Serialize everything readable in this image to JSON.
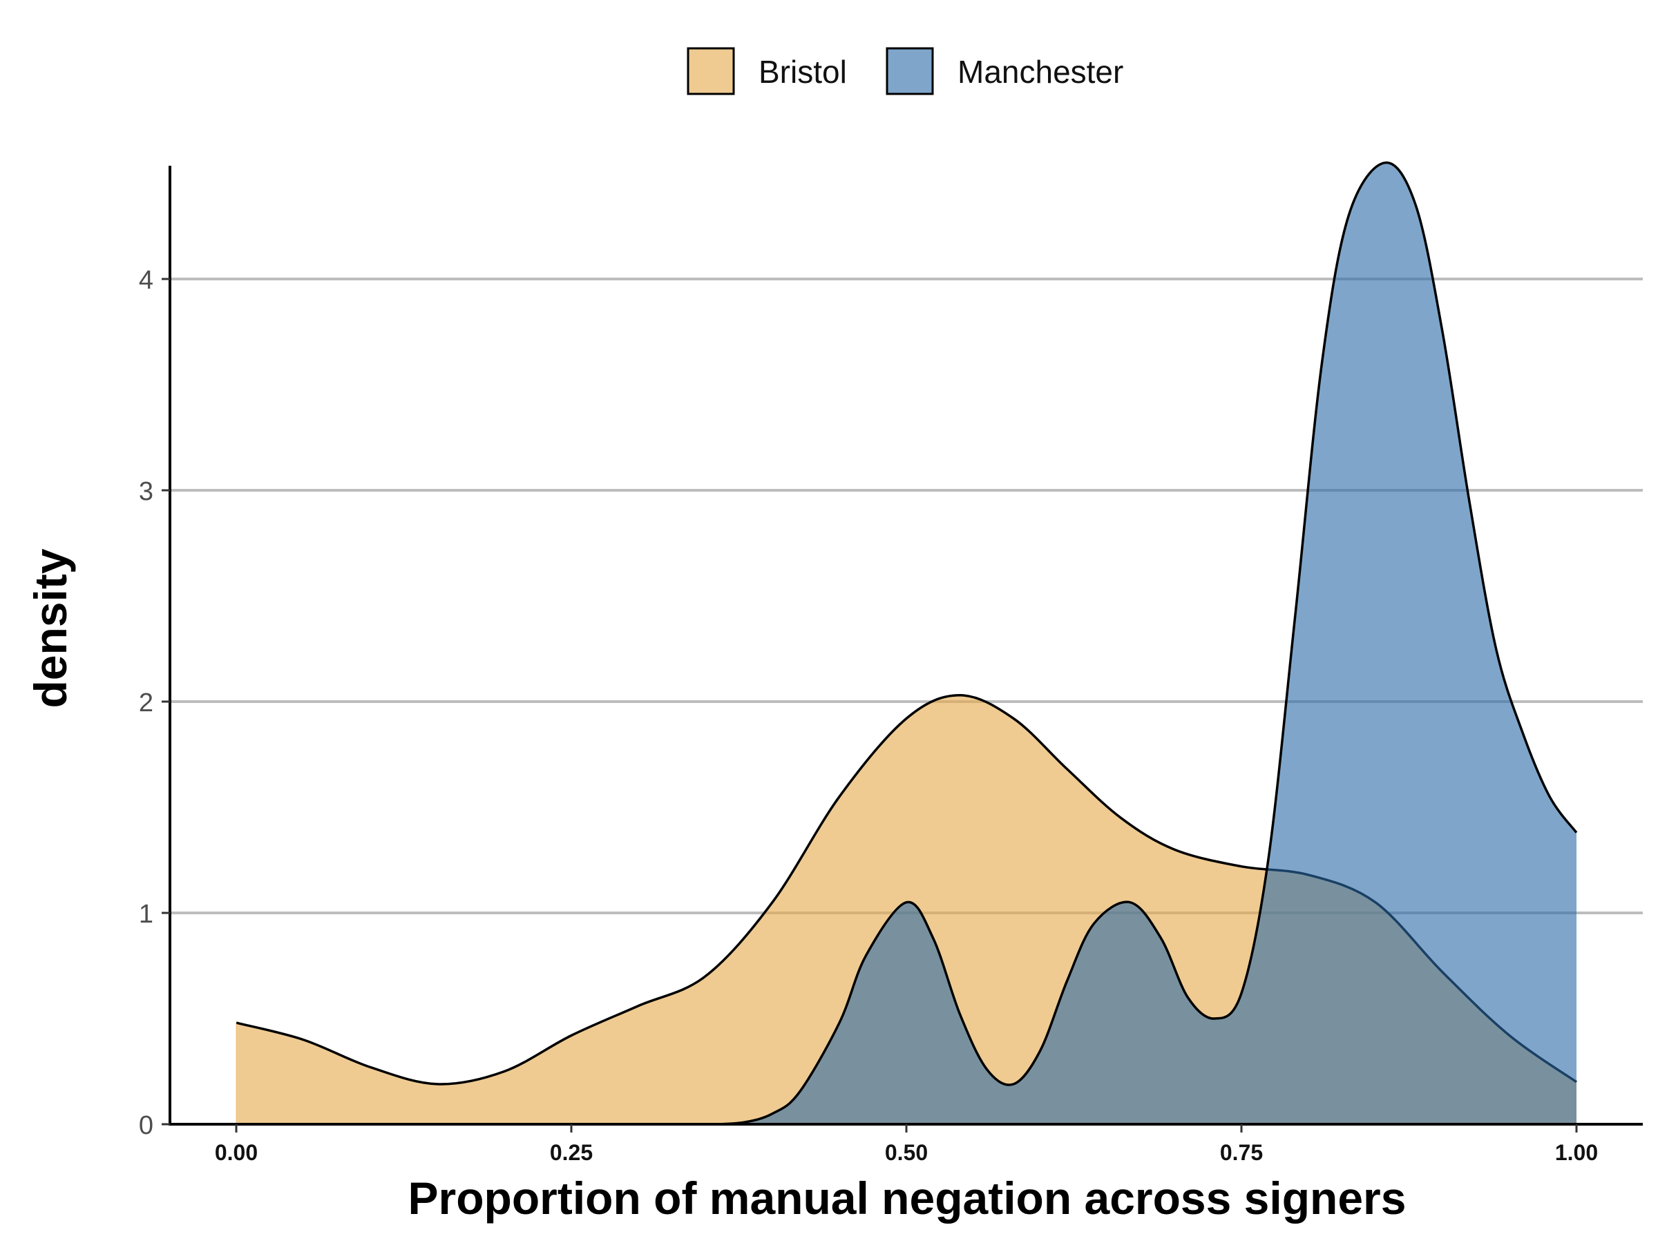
{
  "chart_data": {
    "type": "area",
    "title": "",
    "xlabel": "Proportion of manual negation across signers",
    "ylabel": "density",
    "xlim": [
      0,
      1
    ],
    "ylim": [
      0,
      4.55
    ],
    "x_ticks": [
      "0.00",
      "0.25",
      "0.50",
      "0.75",
      "1.00"
    ],
    "y_ticks": [
      "0",
      "1",
      "2",
      "3",
      "4"
    ],
    "grid": "horizontal major gridlines",
    "legend_position": "top",
    "series": [
      {
        "name": "Bristol",
        "color": "#e5a84a",
        "x": [
          0.0,
          0.05,
          0.1,
          0.15,
          0.2,
          0.25,
          0.3,
          0.35,
          0.4,
          0.45,
          0.5,
          0.54,
          0.58,
          0.62,
          0.66,
          0.7,
          0.75,
          0.8,
          0.85,
          0.9,
          0.95,
          1.0
        ],
        "y": [
          0.48,
          0.4,
          0.27,
          0.19,
          0.25,
          0.42,
          0.56,
          0.7,
          1.05,
          1.55,
          1.92,
          2.03,
          1.92,
          1.68,
          1.45,
          1.3,
          1.22,
          1.18,
          1.05,
          0.72,
          0.42,
          0.2
        ]
      },
      {
        "name": "Manchester",
        "color": "#2a6aa6",
        "x": [
          0.36,
          0.38,
          0.4,
          0.42,
          0.45,
          0.47,
          0.5,
          0.52,
          0.54,
          0.56,
          0.58,
          0.6,
          0.62,
          0.64,
          0.667,
          0.69,
          0.71,
          0.73,
          0.75,
          0.77,
          0.79,
          0.81,
          0.83,
          0.857,
          0.88,
          0.9,
          0.92,
          0.94,
          0.96,
          0.98,
          1.0
        ],
        "y": [
          0.0,
          0.01,
          0.05,
          0.15,
          0.48,
          0.8,
          1.05,
          0.88,
          0.52,
          0.26,
          0.19,
          0.35,
          0.68,
          0.95,
          1.05,
          0.88,
          0.6,
          0.5,
          0.62,
          1.25,
          2.4,
          3.6,
          4.3,
          4.55,
          4.35,
          3.75,
          2.95,
          2.25,
          1.85,
          1.55,
          1.38
        ]
      }
    ]
  }
}
